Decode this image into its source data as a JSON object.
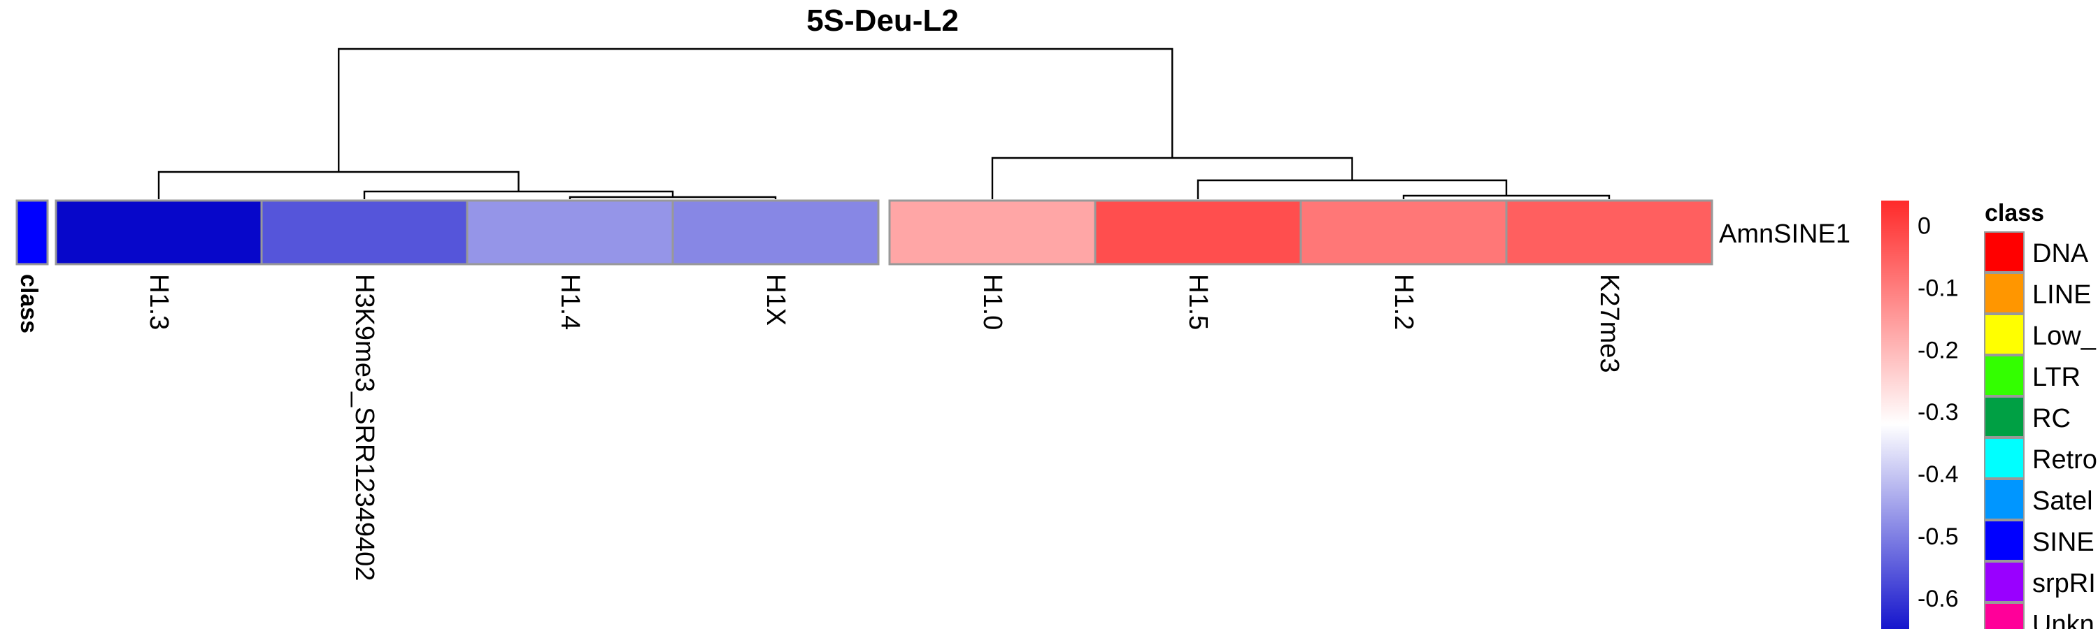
{
  "chart_data": {
    "type": "heatmap",
    "title": "5S-Deu-L2",
    "row_label": "AmnSINE1",
    "annotation_label": "class",
    "annotation_value": "SINE",
    "columns": [
      "H1.3",
      "H3K9me3_SRR12349402",
      "H1.4",
      "H1X",
      "H1.0",
      "H1.5",
      "H1.2",
      "K27me3"
    ],
    "values": [
      -0.67,
      -0.56,
      -0.47,
      -0.49,
      -0.17,
      -0.02,
      -0.09,
      -0.05
    ],
    "column_split": [
      4,
      4
    ],
    "colorbar": {
      "ticks": [
        0,
        -0.1,
        -0.2,
        -0.3,
        -0.4,
        -0.5,
        -0.6
      ],
      "range": [
        -0.68,
        0.04
      ],
      "high_color": "#ff2a2a",
      "mid_color": "#ffffff",
      "low_color": "#0000c8"
    },
    "legend": {
      "title": "class",
      "items": [
        {
          "label": "DNA",
          "color": "#ff0000"
        },
        {
          "label": "LINE",
          "color": "#ff9600"
        },
        {
          "label": "Low_",
          "color": "#ffff00"
        },
        {
          "label": "LTR",
          "color": "#33ff00"
        },
        {
          "label": "RC",
          "color": "#00a044"
        },
        {
          "label": "Retro",
          "color": "#00ffff"
        },
        {
          "label": "Satel",
          "color": "#0096ff"
        },
        {
          "label": "SINE",
          "color": "#0000ff"
        },
        {
          "label": "srpRI",
          "color": "#9900ff"
        },
        {
          "label": "Unkn",
          "color": "#ff0099"
        }
      ]
    },
    "grid": false
  }
}
